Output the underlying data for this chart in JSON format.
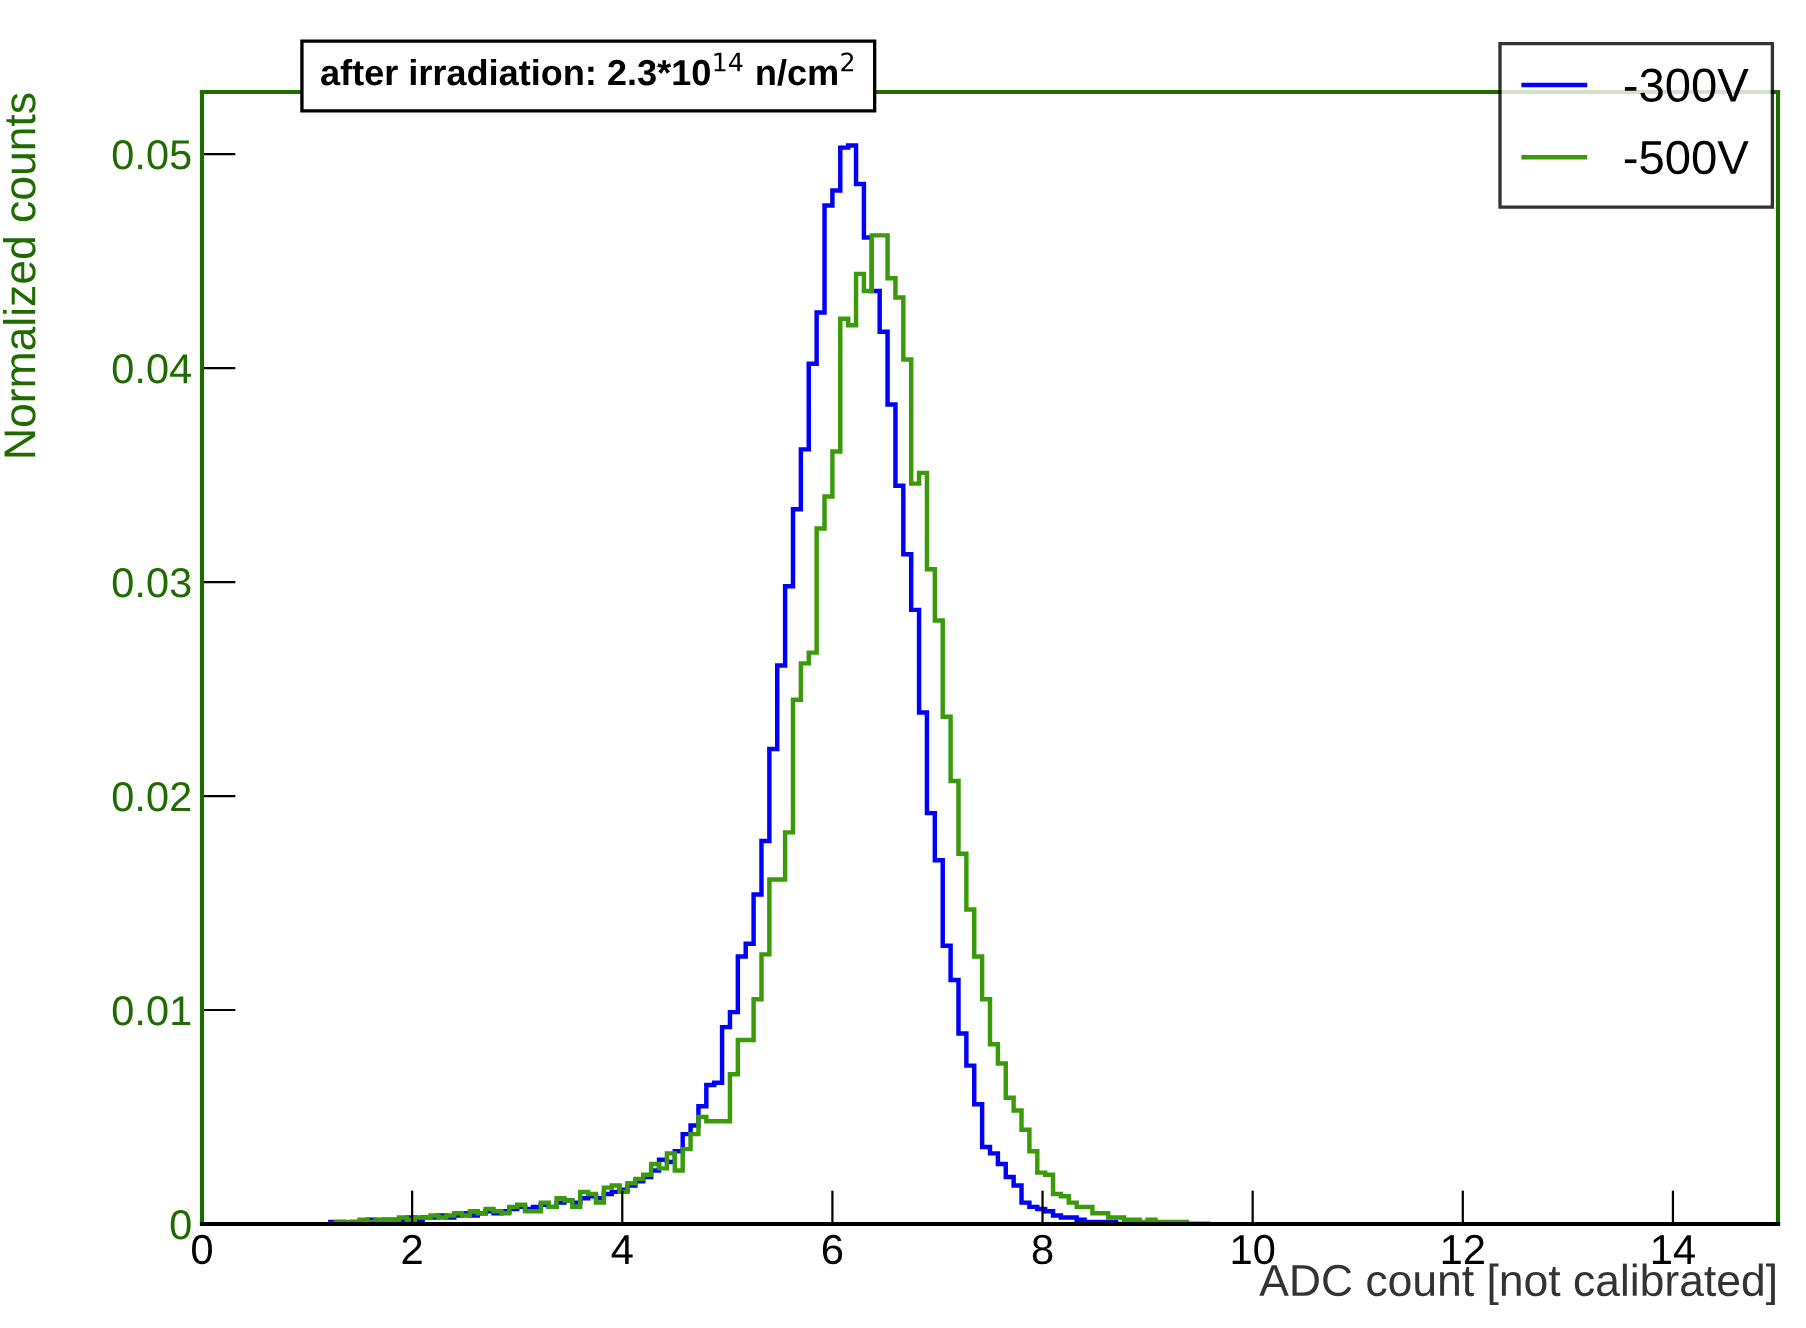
{
  "chart_data": {
    "type": "histogram",
    "title": "after irradiation: 2.3*10$^{14}$ n/cm$^{2}$",
    "xlabel": "ADC count [not calibrated]",
    "ylabel": "Normalized counts",
    "bins": [
      1.2,
      1.275,
      1.35,
      1.425,
      1.5,
      1.575,
      1.65,
      1.725,
      1.8,
      1.875,
      1.95,
      2.025,
      2.1,
      2.175,
      2.25,
      2.325,
      2.4,
      2.475,
      2.55,
      2.625,
      2.7,
      2.775,
      2.85,
      2.925,
      3.0,
      3.075,
      3.15,
      3.225,
      3.3,
      3.375,
      3.45,
      3.525,
      3.6,
      3.675,
      3.75,
      3.825,
      3.9,
      3.975,
      4.05,
      4.125,
      4.2,
      4.275,
      4.35,
      4.425,
      4.5,
      4.575,
      4.65,
      4.725,
      4.8,
      4.875,
      4.95,
      5.025,
      5.1,
      5.175,
      5.25,
      5.325,
      5.4,
      5.475,
      5.55,
      5.625,
      5.7,
      5.775,
      5.85,
      5.925,
      6.0,
      6.075,
      6.15,
      6.225,
      6.3,
      6.375,
      6.45,
      6.525,
      6.6,
      6.675,
      6.75,
      6.825,
      6.9,
      6.975,
      7.05,
      7.125,
      7.2,
      7.275,
      7.35,
      7.425,
      7.5,
      7.575,
      7.65,
      7.725,
      7.8,
      7.875,
      7.95,
      8.025,
      8.1,
      8.175,
      8.25,
      8.325,
      8.4,
      8.475,
      8.55,
      8.625,
      8.7,
      8.775,
      8.85,
      8.925,
      9.0,
      9.075,
      9.15,
      9.225,
      9.3,
      9.375,
      9.45,
      9.525,
      9.6
    ],
    "series": [
      {
        "name": "-300V",
        "color": "#0000ff",
        "values": [
          0.0001,
          0.0001,
          0,
          0.0001,
          0.0001,
          0.0002,
          0.0001,
          0.0002,
          0.0002,
          0.0002,
          0.0003,
          0.0002,
          0.0003,
          0.0003,
          0.0004,
          0.0003,
          0.0004,
          0.0005,
          0.0004,
          0.0005,
          0.0006,
          0.0005,
          0.0006,
          0.0007,
          0.0008,
          0.0007,
          0.0008,
          0.0009,
          0.0008,
          0.001,
          0.0011,
          0.001,
          0.0012,
          0.0013,
          0.0012,
          0.0014,
          0.0015,
          0.0016,
          0.0018,
          0.002,
          0.0022,
          0.0025,
          0.003,
          0.0029,
          0.0034,
          0.0042,
          0.0046,
          0.0055,
          0.0065,
          0.0066,
          0.0092,
          0.0099,
          0.0125,
          0.0131,
          0.0154,
          0.0179,
          0.0222,
          0.0261,
          0.0298,
          0.0334,
          0.0362,
          0.0402,
          0.0426,
          0.0476,
          0.0483,
          0.0503,
          0.0504,
          0.0486,
          0.0461,
          0.0436,
          0.0417,
          0.0383,
          0.0345,
          0.0313,
          0.0287,
          0.0239,
          0.0192,
          0.017,
          0.013,
          0.0114,
          0.0089,
          0.0074,
          0.0056,
          0.0036,
          0.0033,
          0.0028,
          0.0022,
          0.0018,
          0.001,
          0.0008,
          0.0007,
          0.0006,
          0.0004,
          0.0003,
          0.0003,
          0.0002,
          0.0001,
          0.0001,
          0.0001,
          0.0001,
          0,
          0,
          0,
          0,
          0,
          0,
          0,
          0,
          0,
          0,
          0,
          0
        ]
      },
      {
        "name": "-500V",
        "color": "#3a9a0a",
        "values": [
          0,
          0.0001,
          0.0001,
          0.0001,
          0.0002,
          0.0001,
          0.0002,
          0.0002,
          0.0002,
          0.0003,
          0.0002,
          0.0003,
          0.0003,
          0.0004,
          0.0003,
          0.0004,
          0.0005,
          0.0004,
          0.0006,
          0.0005,
          0.0007,
          0.0006,
          0.0005,
          0.0008,
          0.0009,
          0.0006,
          0.0006,
          0.001,
          0.0008,
          0.0012,
          0.0011,
          0.0008,
          0.0015,
          0.0014,
          0.001,
          0.0017,
          0.0018,
          0.0015,
          0.0019,
          0.0021,
          0.0023,
          0.0028,
          0.0026,
          0.0033,
          0.0025,
          0.0035,
          0.0042,
          0.005,
          0.0048,
          0.0048,
          0.0048,
          0.007,
          0.0086,
          0.0086,
          0.0105,
          0.0126,
          0.0161,
          0.0161,
          0.0183,
          0.0245,
          0.0262,
          0.0267,
          0.0325,
          0.034,
          0.0361,
          0.0423,
          0.042,
          0.0444,
          0.0436,
          0.0462,
          0.0462,
          0.0442,
          0.0433,
          0.0404,
          0.0346,
          0.0351,
          0.0306,
          0.0282,
          0.0237,
          0.0207,
          0.0173,
          0.0147,
          0.0125,
          0.0105,
          0.0084,
          0.0075,
          0.0059,
          0.0053,
          0.0044,
          0.0034,
          0.0024,
          0.0023,
          0.0014,
          0.0013,
          0.001,
          0.0008,
          0.0008,
          0.0005,
          0.0005,
          0.0003,
          0.0003,
          0.0002,
          0.0002,
          0.0001,
          0.0002,
          0.0001,
          0.0001,
          0.0001,
          0.0001,
          0,
          0,
          0
        ]
      }
    ],
    "xlim": [
      0,
      15
    ],
    "xticks": [
      0,
      2,
      4,
      6,
      8,
      10,
      12,
      14
    ],
    "ylim": [
      0,
      0.0529
    ],
    "yticks": [
      0,
      0.01,
      0.02,
      0.03,
      0.04,
      0.05
    ],
    "grid": false,
    "legend": "top right"
  }
}
